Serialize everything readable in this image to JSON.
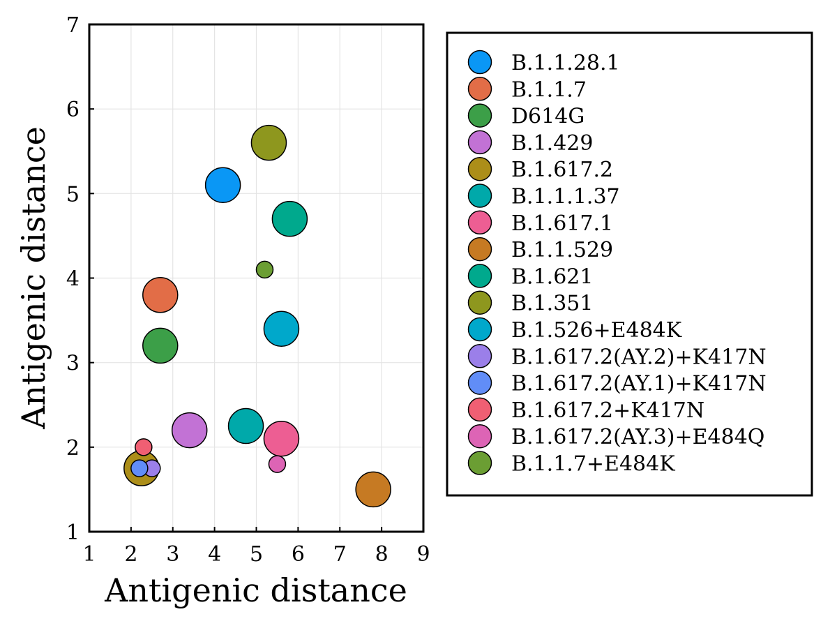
{
  "chart_data": {
    "type": "scatter",
    "title": "",
    "xlabel": "Antigenic distance",
    "ylabel": "Antigenic distance",
    "xlim": [
      1,
      9
    ],
    "ylim": [
      1,
      7
    ],
    "xticks": [
      "1",
      "2",
      "3",
      "4",
      "5",
      "6",
      "7",
      "8",
      "9"
    ],
    "yticks": [
      "1",
      "2",
      "3",
      "4",
      "5",
      "6",
      "7"
    ],
    "grid": true,
    "legend_position": "right",
    "series": [
      {
        "name": "B.1.1.28.1",
        "color": "#0A97F5",
        "points": [
          {
            "x": 4.2,
            "y": 5.1,
            "size": 3
          }
        ]
      },
      {
        "name": "B.1.1.7",
        "color": "#E26D47",
        "points": [
          {
            "x": 2.7,
            "y": 3.8,
            "size": 3
          }
        ]
      },
      {
        "name": "D614G",
        "color": "#3C9F48",
        "points": [
          {
            "x": 2.7,
            "y": 3.2,
            "size": 3
          }
        ]
      },
      {
        "name": "B.1.429",
        "color": "#C272D5",
        "points": [
          {
            "x": 3.4,
            "y": 2.2,
            "size": 3
          }
        ]
      },
      {
        "name": "B.1.617.2",
        "color": "#AC8E19",
        "points": [
          {
            "x": 2.25,
            "y": 1.75,
            "size": 3
          }
        ]
      },
      {
        "name": "B.1.1.1.37",
        "color": "#00A9AA",
        "points": [
          {
            "x": 4.75,
            "y": 2.25,
            "size": 3
          }
        ]
      },
      {
        "name": "B.1.617.1",
        "color": "#ED5E93",
        "points": [
          {
            "x": 5.6,
            "y": 2.1,
            "size": 3
          }
        ]
      },
      {
        "name": "B.1.1.529",
        "color": "#C67A23",
        "points": [
          {
            "x": 7.8,
            "y": 1.5,
            "size": 3
          }
        ]
      },
      {
        "name": "B.1.621",
        "color": "#00A98D",
        "points": [
          {
            "x": 5.8,
            "y": 4.7,
            "size": 3
          }
        ]
      },
      {
        "name": "B.1.351",
        "color": "#8E971E",
        "points": [
          {
            "x": 5.3,
            "y": 5.6,
            "size": 3
          }
        ]
      },
      {
        "name": "B.1.526+E484K",
        "color": "#00A8CB",
        "points": [
          {
            "x": 5.6,
            "y": 3.4,
            "size": 3
          }
        ]
      },
      {
        "name": "B.1.617.2(AY.2)+K417N",
        "color": "#9B7FE9",
        "points": [
          {
            "x": 2.5,
            "y": 1.75,
            "size": 1
          }
        ]
      },
      {
        "name": "B.1.617.2(AY.1)+K417N",
        "color": "#618DF7",
        "points": [
          {
            "x": 2.2,
            "y": 1.75,
            "size": 1
          }
        ]
      },
      {
        "name": "B.1.617.2+K417N",
        "color": "#F05F73",
        "points": [
          {
            "x": 2.3,
            "y": 2.0,
            "size": 1
          }
        ]
      },
      {
        "name": "B.1.617.2(AY.3)+E484Q",
        "color": "#DD64B5",
        "points": [
          {
            "x": 5.5,
            "y": 1.8,
            "size": 1
          }
        ]
      },
      {
        "name": "B.1.1.7+E484K",
        "color": "#6B9E33",
        "points": [
          {
            "x": 5.2,
            "y": 4.1,
            "size": 1
          }
        ]
      }
    ]
  }
}
